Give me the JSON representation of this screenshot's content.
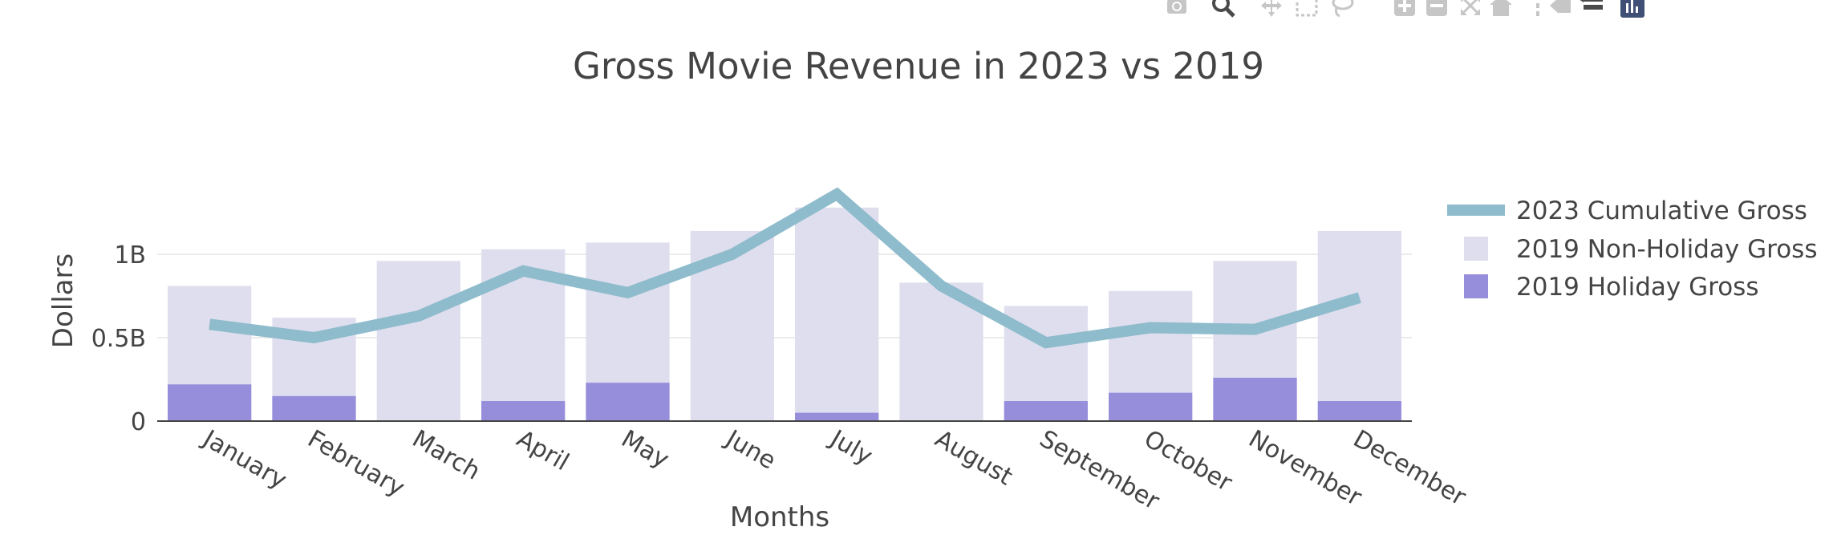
{
  "modebar": {
    "buttons": [
      {
        "name": "camera-icon"
      },
      {
        "name": "zoom-icon"
      },
      {
        "name": "pan-icon"
      },
      {
        "name": "box-select-icon"
      },
      {
        "name": "lasso-select-icon"
      },
      {
        "name": "zoom-in-icon"
      },
      {
        "name": "zoom-out-icon"
      },
      {
        "name": "autoscale-icon"
      },
      {
        "name": "reset-axes-icon"
      },
      {
        "name": "toggle-spike-lines-icon"
      },
      {
        "name": "hover-closest-icon"
      },
      {
        "name": "hover-compare-icon"
      },
      {
        "name": "plotly-logo-icon"
      }
    ]
  },
  "chart_data": {
    "type": "bar",
    "title": "Gross Movie Revenue in 2023 vs 2019",
    "xlabel": "Months",
    "ylabel": "Dollars",
    "categories": [
      "January",
      "February",
      "March",
      "April",
      "May",
      "June",
      "July",
      "August",
      "September",
      "October",
      "November",
      "December"
    ],
    "ylim": [
      0,
      1.5
    ],
    "yticks": [
      {
        "value": 0,
        "label": "0"
      },
      {
        "value": 0.5,
        "label": "0.5B"
      },
      {
        "value": 1,
        "label": "1B"
      }
    ],
    "grid": true,
    "legend_position": "top-right",
    "barmode": "overlay",
    "series": [
      {
        "name": "2023 Cumulative Gross",
        "type": "line",
        "color": "#8fbccc",
        "values": [
          0.58,
          0.5,
          0.63,
          0.9,
          0.77,
          1.0,
          1.36,
          0.81,
          0.47,
          0.56,
          0.55,
          0.74
        ]
      },
      {
        "name": "2019 Non-Holiday Gross",
        "type": "bar",
        "color": "#dfdeee",
        "values": [
          0.81,
          0.62,
          0.96,
          1.03,
          1.07,
          1.14,
          1.28,
          0.83,
          0.69,
          0.78,
          0.96,
          1.14
        ]
      },
      {
        "name": "2019 Holiday Gross",
        "type": "bar",
        "color": "#978edb",
        "values": [
          0.22,
          0.15,
          0.0,
          0.12,
          0.23,
          0.0,
          0.05,
          0.0,
          0.12,
          0.17,
          0.26,
          0.12
        ]
      }
    ]
  }
}
